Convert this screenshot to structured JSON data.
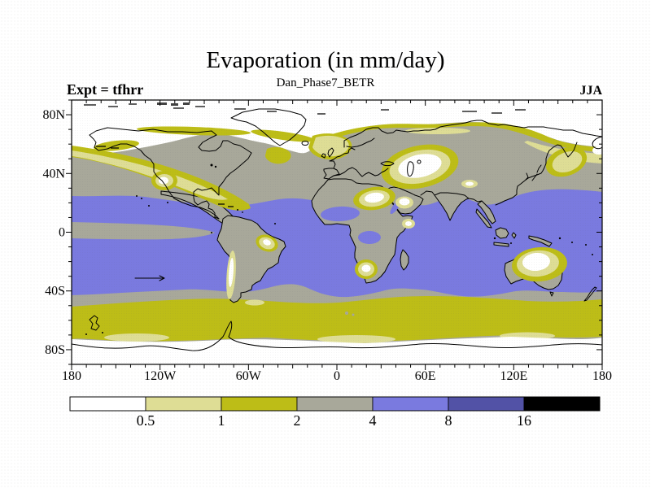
{
  "figure": {
    "title": "Evaporation (in mm/day)",
    "subtitle": "Dan_Phase7_BETR",
    "experiment_label": "Expt = tfhrr",
    "season_label": "JJA"
  },
  "axes": {
    "x_tick_labels": [
      "180",
      "120W",
      "60W",
      "0",
      "60E",
      "120E",
      "180"
    ],
    "y_tick_labels": [
      "80N",
      "40N",
      "0",
      "40S",
      "80S"
    ]
  },
  "palette": {
    "white": "#ffffff",
    "pale_yellow": "#dedd95",
    "olive": "#bdbd17",
    "gray": "#a8a89a",
    "blue": "#7a7adf",
    "dark_blue": "#5252a6",
    "black": "#000000",
    "ink": "#000000"
  },
  "colorbar": {
    "boundary_labels": [
      "0.5",
      "1",
      "2",
      "4",
      "8",
      "16"
    ],
    "segments": [
      {
        "name": "below-0.5",
        "color": "#ffffff"
      },
      {
        "name": "0.5-to-1",
        "color": "#dedd95"
      },
      {
        "name": "1-to-2",
        "color": "#bdbd17"
      },
      {
        "name": "2-to-4",
        "color": "#a8a89a"
      },
      {
        "name": "4-to-8",
        "color": "#7a7adf"
      },
      {
        "name": "8-to-16",
        "color": "#5252a6"
      },
      {
        "name": "above-16",
        "color": "#000000"
      }
    ]
  },
  "chart_data": {
    "type": "heatmap",
    "subtype": "filled-contour-world-map",
    "title": "Evaporation (in mm/day)",
    "subtitle": "Dan_Phase7_BETR",
    "experiment": "tfhrr",
    "season": "JJA",
    "units": "mm/day",
    "projection": "equirectangular",
    "lon_range": [
      -180,
      180
    ],
    "lat_range": [
      -90,
      90
    ],
    "x_tick_labels": [
      "180",
      "120W",
      "60W",
      "0",
      "60E",
      "120E",
      "180"
    ],
    "y_tick_labels": [
      "80N",
      "40N",
      "0",
      "40S",
      "80S"
    ],
    "contour_levels": [
      0.5,
      1,
      2,
      4,
      8,
      16
    ],
    "legend_position": "bottom",
    "grid": false,
    "regions": [
      {
        "area": "Arctic Ocean and polar land north of ~65N",
        "value_mm_day": "< 0.5"
      },
      {
        "area": "Subarctic coastal fringe ~60-72N",
        "value_mm_day": "1 - 2"
      },
      {
        "area": "North Pacific wedge ~40-60N",
        "value_mm_day": "0.5 - 2"
      },
      {
        "area": "Mid-latitude continents and oceans ~30-60N",
        "value_mm_day": "2 - 4"
      },
      {
        "area": "Tropical and subtropical oceans ~25N-35S",
        "value_mm_day": "4 - 8"
      },
      {
        "area": "Equatorial Pacific cold-tongue strip",
        "value_mm_day": "2 - 4"
      },
      {
        "area": "West African monsoon belt and Congo basin",
        "value_mm_day": "4 - 8"
      },
      {
        "area": "Sahara, Arabia, Central Asia, Horn of Africa",
        "value_mm_day": "< 0.5 - 1"
      },
      {
        "area": "SW North America, NE Brazil, Chilean Andes, Namibia, central Australia",
        "value_mm_day": "< 0.5 - 1"
      },
      {
        "area": "Southern mid-latitude ocean ~35-50S",
        "value_mm_day": "2 - 4"
      },
      {
        "area": "Southern Ocean band ~50-65S",
        "value_mm_day": "1 - 2"
      },
      {
        "area": "Antarctica south of ~65S",
        "value_mm_day": "< 0.5"
      }
    ]
  }
}
